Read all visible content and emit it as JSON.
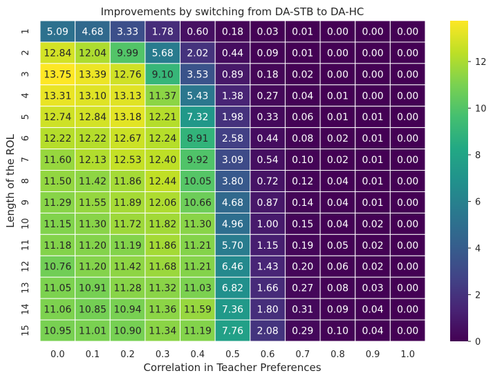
{
  "chart_data": {
    "type": "heatmap",
    "title": "Improvements by switching from DA-STB to DA-HC",
    "xlabel": "Correlation in Teacher Preferences",
    "ylabel": "Length of the ROL",
    "x_categories": [
      "0.0",
      "0.1",
      "0.2",
      "0.3",
      "0.4",
      "0.5",
      "0.6",
      "0.7",
      "0.8",
      "0.9",
      "1.0"
    ],
    "y_categories": [
      "1",
      "2",
      "3",
      "4",
      "5",
      "6",
      "7",
      "8",
      "9",
      "10",
      "11",
      "12",
      "13",
      "14",
      "15"
    ],
    "values": [
      [
        5.09,
        4.68,
        3.33,
        1.78,
        0.6,
        0.18,
        0.03,
        0.01,
        0.0,
        0.0,
        0.0
      ],
      [
        12.84,
        12.04,
        9.99,
        5.68,
        2.02,
        0.44,
        0.09,
        0.01,
        0.0,
        0.0,
        0.0
      ],
      [
        13.75,
        13.39,
        12.76,
        9.1,
        3.53,
        0.89,
        0.18,
        0.02,
        0.0,
        0.0,
        0.0
      ],
      [
        13.31,
        13.1,
        13.13,
        11.37,
        5.43,
        1.38,
        0.27,
        0.04,
        0.01,
        0.0,
        0.0
      ],
      [
        12.74,
        12.84,
        13.18,
        12.21,
        7.32,
        1.98,
        0.33,
        0.06,
        0.01,
        0.01,
        0.0
      ],
      [
        12.22,
        12.22,
        12.67,
        12.24,
        8.91,
        2.58,
        0.44,
        0.08,
        0.02,
        0.01,
        0.0
      ],
      [
        11.6,
        12.13,
        12.53,
        12.4,
        9.92,
        3.09,
        0.54,
        0.1,
        0.02,
        0.01,
        0.0
      ],
      [
        11.5,
        11.42,
        11.86,
        12.44,
        10.05,
        3.8,
        0.72,
        0.12,
        0.04,
        0.01,
        0.0
      ],
      [
        11.29,
        11.55,
        11.89,
        12.06,
        10.66,
        4.68,
        0.87,
        0.14,
        0.04,
        0.01,
        0.0
      ],
      [
        11.15,
        11.3,
        11.72,
        11.82,
        11.3,
        4.96,
        1.0,
        0.15,
        0.04,
        0.02,
        0.0
      ],
      [
        11.18,
        11.2,
        11.19,
        11.86,
        11.21,
        5.7,
        1.15,
        0.19,
        0.05,
        0.02,
        0.0
      ],
      [
        10.76,
        11.2,
        11.42,
        11.68,
        11.21,
        6.46,
        1.43,
        0.2,
        0.06,
        0.02,
        0.0
      ],
      [
        11.05,
        10.91,
        11.28,
        11.32,
        11.03,
        6.82,
        1.66,
        0.27,
        0.08,
        0.03,
        0.0
      ],
      [
        11.06,
        10.85,
        10.94,
        11.36,
        11.59,
        7.36,
        1.8,
        0.31,
        0.09,
        0.04,
        0.0
      ],
      [
        10.95,
        11.01,
        10.9,
        11.34,
        11.19,
        7.76,
        2.08,
        0.29,
        0.1,
        0.04,
        0.0
      ]
    ],
    "colormap": "viridis",
    "vmin": 0,
    "vmax": 13.75,
    "colorbar_ticks": [
      0,
      2,
      4,
      6,
      8,
      10,
      12
    ],
    "value_format": "2 decimals",
    "grid_lines": "white"
  }
}
